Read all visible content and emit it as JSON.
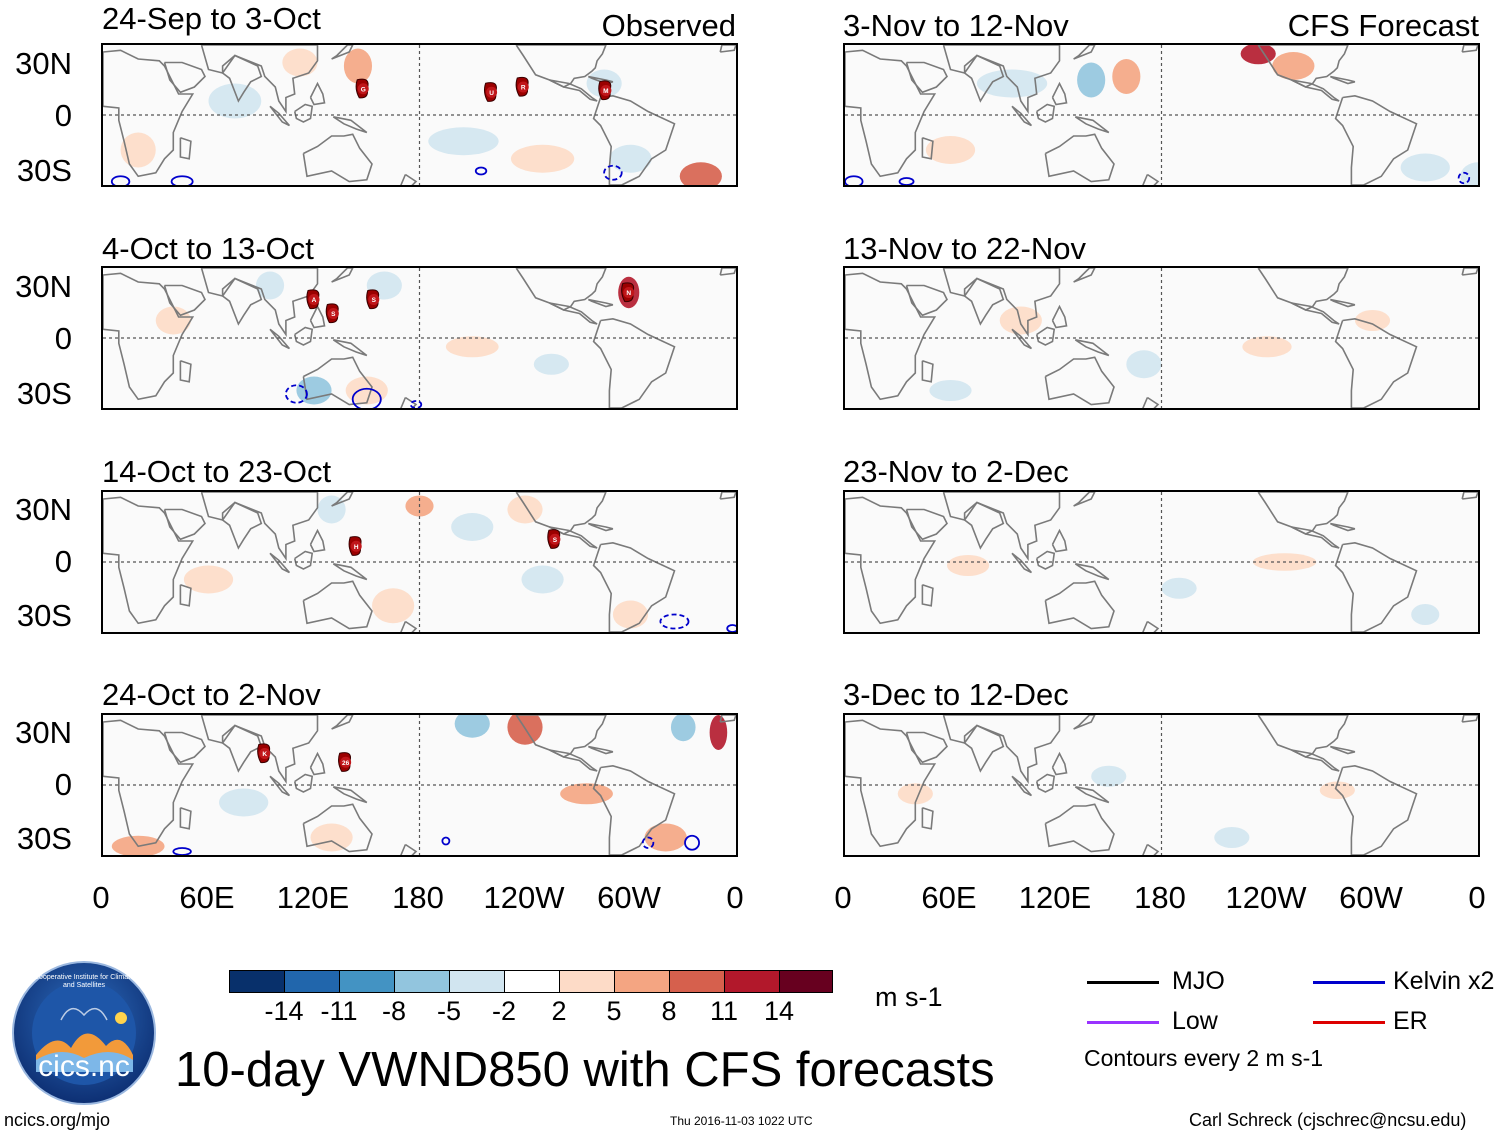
{
  "title": "10-day VWND850 with CFS forecasts",
  "units": "m s-1",
  "colors": {
    "neg": [
      "#08306b",
      "#2166ac",
      "#4393c3",
      "#92c5de",
      "#d1e5f0"
    ],
    "zero": "#ffffff",
    "pos": [
      "#fddbc7",
      "#f4a582",
      "#d6604d",
      "#b2182b",
      "#67001f"
    ],
    "mjo": "#000000",
    "low": "#9933ff",
    "kelvin": "#0000cc",
    "er": "#dd0000",
    "land": "#7a7a7a"
  },
  "colorbar_labels": [
    "-14",
    "-11",
    "-8",
    "-5",
    "-2",
    "2",
    "5",
    "8",
    "11",
    "14"
  ],
  "legend": {
    "mjo": "MJO",
    "kelvin": "Kelvin x2",
    "low": "Low",
    "er": "ER",
    "contour_note": "Contours every 2 m s-1"
  },
  "column_headers": {
    "observed": "Observed",
    "forecast": "CFS Forecast"
  },
  "lat_labels": [
    "30N",
    "0",
    "30S"
  ],
  "lon_labels": [
    "0",
    "60E",
    "120E",
    "180",
    "120W",
    "60W",
    "0"
  ],
  "observed_panels": [
    {
      "period": "24-Sep to 3-Oct",
      "storms": [
        {
          "id": "G",
          "lon": 148,
          "lat": 15
        },
        {
          "id": "U",
          "lon": 221,
          "lat": 13
        },
        {
          "id": "R",
          "lon": 239,
          "lat": 16
        },
        {
          "id": "M",
          "lon": 286,
          "lat": 14
        }
      ]
    },
    {
      "period": "4-Oct to 13-Oct",
      "storms": [
        {
          "id": "A",
          "lon": 120,
          "lat": 22
        },
        {
          "id": "S",
          "lon": 131,
          "lat": 14
        },
        {
          "id": "S",
          "lon": 154,
          "lat": 22
        },
        {
          "id": "N",
          "lon": 299,
          "lat": 26
        }
      ]
    },
    {
      "period": "14-Oct to 23-Oct",
      "storms": [
        {
          "id": "H",
          "lon": 144,
          "lat": 9
        },
        {
          "id": "S",
          "lon": 257,
          "lat": 13
        }
      ]
    },
    {
      "period": "24-Oct to 2-Nov",
      "storms": [
        {
          "id": "K",
          "lon": 92,
          "lat": 18
        },
        {
          "id": "26",
          "lon": 138,
          "lat": 13
        }
      ]
    }
  ],
  "forecast_panels": [
    {
      "period": "3-Nov to 12-Nov"
    },
    {
      "period": "13-Nov to 22-Nov"
    },
    {
      "period": "23-Nov to 2-Dec"
    },
    {
      "period": "3-Dec to 12-Dec"
    }
  ],
  "logo_text": "cics.nc",
  "logo_ring_text": "Cooperative Institute for Climate and Satellites",
  "footer": {
    "left": "ncics.org/mjo",
    "center": "Thu 2016-11-03 1022 UTC",
    "right": "Carl Schreck (cjschrec@ncsu.edu)"
  }
}
